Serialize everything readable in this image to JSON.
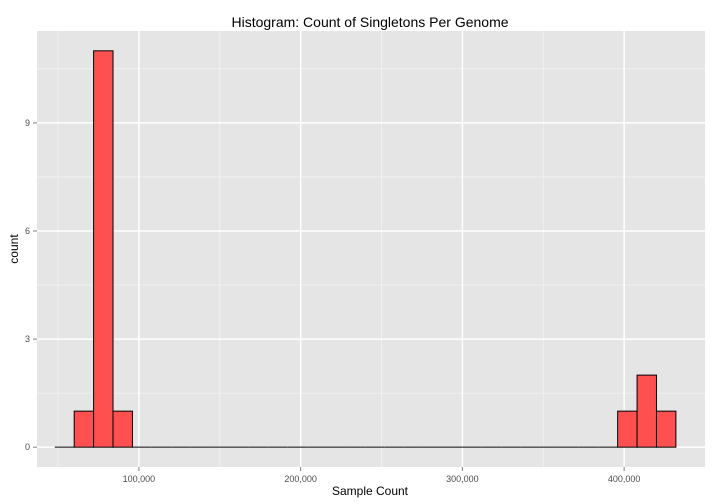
{
  "chart_data": {
    "type": "bar",
    "title": "Histogram: Count of Singletons Per Genome",
    "xlabel": "Sample Count",
    "ylabel": "count",
    "xlim": [
      37000,
      450000
    ],
    "ylim": [
      -0.55,
      11.55
    ],
    "grid": true,
    "x_ticks": [
      100000,
      200000,
      300000,
      400000
    ],
    "x_tick_labels": [
      "100,000",
      "200,000",
      "300,000",
      "400,000"
    ],
    "y_ticks": [
      0,
      3,
      6,
      9
    ],
    "y_tick_labels": [
      "0",
      "3",
      "6",
      "9"
    ],
    "bin_width": 12000,
    "bins": [
      {
        "x0": 48000,
        "count": 0
      },
      {
        "x0": 60000,
        "count": 1
      },
      {
        "x0": 72000,
        "count": 11
      },
      {
        "x0": 84000,
        "count": 1
      },
      {
        "x0": 96000,
        "count": 0
      },
      {
        "x0": 108000,
        "count": 0
      },
      {
        "x0": 120000,
        "count": 0
      },
      {
        "x0": 132000,
        "count": 0
      },
      {
        "x0": 144000,
        "count": 0
      },
      {
        "x0": 156000,
        "count": 0
      },
      {
        "x0": 168000,
        "count": 0
      },
      {
        "x0": 180000,
        "count": 0
      },
      {
        "x0": 192000,
        "count": 0
      },
      {
        "x0": 204000,
        "count": 0
      },
      {
        "x0": 216000,
        "count": 0
      },
      {
        "x0": 228000,
        "count": 0
      },
      {
        "x0": 240000,
        "count": 0
      },
      {
        "x0": 252000,
        "count": 0
      },
      {
        "x0": 264000,
        "count": 0
      },
      {
        "x0": 276000,
        "count": 0
      },
      {
        "x0": 288000,
        "count": 0
      },
      {
        "x0": 300000,
        "count": 0
      },
      {
        "x0": 312000,
        "count": 0
      },
      {
        "x0": 324000,
        "count": 0
      },
      {
        "x0": 336000,
        "count": 0
      },
      {
        "x0": 348000,
        "count": 0
      },
      {
        "x0": 360000,
        "count": 0
      },
      {
        "x0": 372000,
        "count": 0
      },
      {
        "x0": 384000,
        "count": 0
      },
      {
        "x0": 396000,
        "count": 1
      },
      {
        "x0": 408000,
        "count": 2
      },
      {
        "x0": 420000,
        "count": 1
      }
    ],
    "bar_fill": "#ff5050",
    "bar_stroke": "#000000",
    "panel_background": "#e5e5e5",
    "grid_color": "#ffffff"
  }
}
